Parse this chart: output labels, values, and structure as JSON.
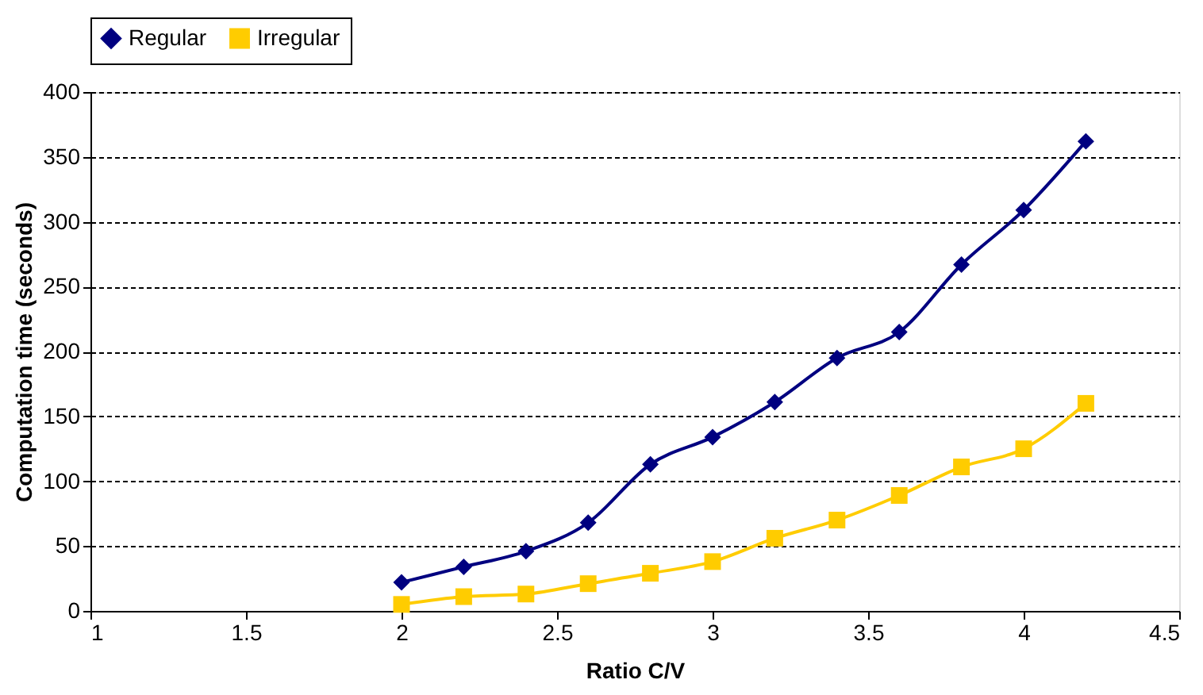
{
  "chart_data": {
    "type": "line",
    "xlabel": "Ratio C/V",
    "ylabel": "Computation time (seconds)",
    "x": [
      2,
      2.2,
      2.4,
      2.6,
      2.8,
      3,
      3.2,
      3.4,
      3.6,
      3.8,
      4,
      4.2
    ],
    "series": [
      {
        "name": "Regular",
        "color": "#000080",
        "marker": "diamond",
        "values": [
          22,
          34,
          46,
          68,
          113,
          134,
          161,
          195,
          215,
          267,
          309,
          362
        ]
      },
      {
        "name": "Irregular",
        "color": "#ffcc00",
        "marker": "square",
        "values": [
          5,
          11,
          13,
          21,
          29,
          38,
          56,
          70,
          89,
          111,
          125,
          160
        ]
      }
    ],
    "xlim": [
      1,
      4.5
    ],
    "xticks": [
      1,
      1.5,
      2,
      2.5,
      3,
      3.5,
      4,
      4.5
    ],
    "ylim": [
      0,
      400
    ],
    "yticks": [
      0,
      50,
      100,
      150,
      200,
      250,
      300,
      350,
      400
    ],
    "grid": "y",
    "legend": "top",
    "line_style": "solid"
  }
}
